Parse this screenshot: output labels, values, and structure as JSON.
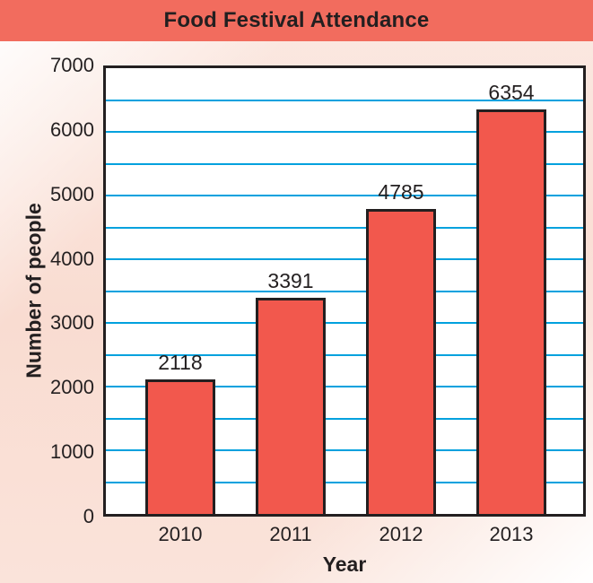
{
  "chart_data": {
    "type": "bar",
    "title": "Food Festival Attendance",
    "categories": [
      "2010",
      "2011",
      "2012",
      "2013"
    ],
    "values": [
      2118,
      3391,
      4785,
      6354
    ],
    "xlabel": "Year",
    "ylabel": "Number of people",
    "ylim": [
      0,
      7000
    ],
    "ytick_step": 1000,
    "ytick_labels": [
      "0",
      "1000",
      "2000",
      "3000",
      "4000",
      "5000",
      "6000",
      "7000"
    ],
    "gridline_step": 500,
    "grid": true,
    "legend": false,
    "colors": {
      "bar_fill": "#f2584d",
      "bar_border": "#231f20",
      "gridline": "#00a1de",
      "banner": "#f26c5e",
      "text": "#231f20",
      "plot_background": "#ffffff"
    }
  }
}
